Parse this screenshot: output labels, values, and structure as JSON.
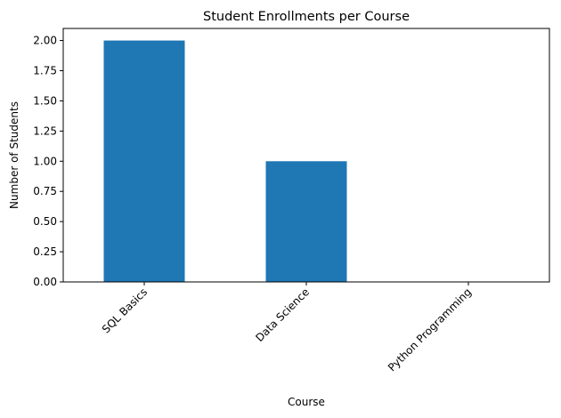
{
  "chart_data": {
    "type": "bar",
    "title": "Student Enrollments per Course",
    "xlabel": "Course",
    "ylabel": "Number of Students",
    "categories": [
      "SQL Basics",
      "Data Science",
      "Python Programming"
    ],
    "values": [
      2,
      1,
      0
    ],
    "ylim": [
      0,
      2.1
    ],
    "yticks": [
      0,
      0.25,
      0.5,
      0.75,
      1.0,
      1.25,
      1.5,
      1.75,
      2.0
    ],
    "ytick_labels": [
      "0.00",
      "0.25",
      "0.50",
      "0.75",
      "1.00",
      "1.25",
      "1.50",
      "1.75",
      "2.00"
    ],
    "xtick_rotation_deg": 45,
    "bar_color": "#1f77b4",
    "grid": false,
    "legend": "none"
  }
}
